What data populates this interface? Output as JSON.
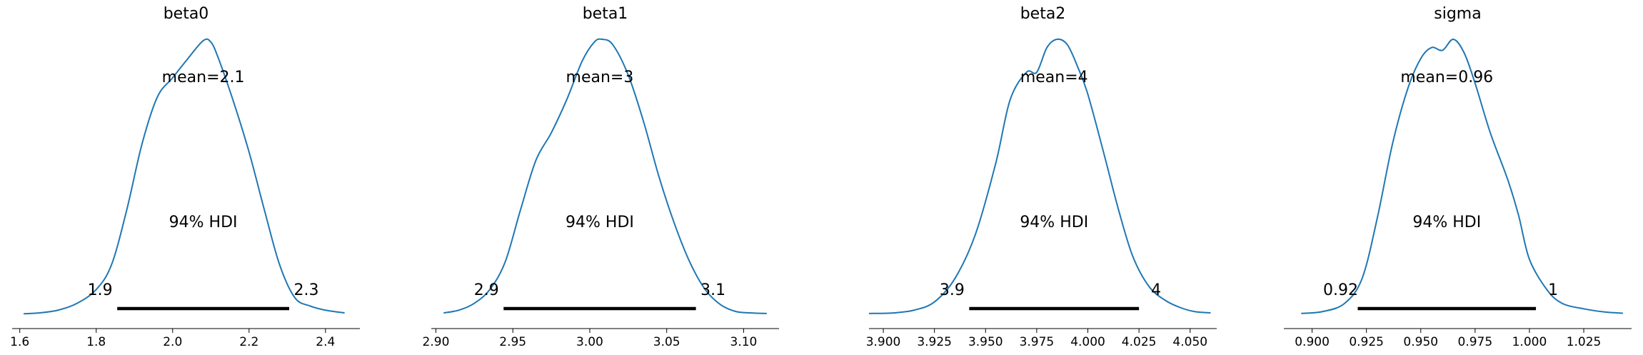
{
  "figure": {
    "background": "#ffffff",
    "kde_color": "#1f77b4",
    "hdi_color": "#000000",
    "axis_color": "#000000"
  },
  "chart_data": [
    {
      "type": "line",
      "title": "beta0",
      "xlim": [
        1.58,
        2.49
      ],
      "grid": false,
      "ticks": [
        1.6,
        1.8,
        2.0,
        2.2,
        2.4
      ],
      "tick_labels": [
        "1.6",
        "1.8",
        "2.0",
        "2.2",
        "2.4"
      ],
      "mean_label": "mean=2.1",
      "hdi_label": "94% HDI",
      "hdi": [
        1.855,
        2.305
      ],
      "hdi_low_label": "1.9",
      "hdi_high_label": "2.3",
      "density": {
        "x": [
          1.61,
          1.65,
          1.7,
          1.75,
          1.8,
          1.84,
          1.88,
          1.92,
          1.96,
          2.0,
          2.04,
          2.08,
          2.1,
          2.12,
          2.16,
          2.2,
          2.24,
          2.28,
          2.32,
          2.36,
          2.4,
          2.45
        ],
        "y": [
          0.002,
          0.005,
          0.015,
          0.04,
          0.09,
          0.18,
          0.38,
          0.62,
          0.79,
          0.86,
          0.93,
          0.995,
          0.99,
          0.93,
          0.77,
          0.59,
          0.38,
          0.18,
          0.06,
          0.03,
          0.015,
          0.005
        ]
      }
    },
    {
      "type": "line",
      "title": "beta1",
      "xlim": [
        2.897,
        3.123
      ],
      "grid": false,
      "ticks": [
        2.9,
        2.95,
        3.0,
        3.05,
        3.1
      ],
      "tick_labels": [
        "2.90",
        "2.95",
        "3.00",
        "3.05",
        "3.10"
      ],
      "mean_label": "mean=3",
      "hdi_label": "94% HDI",
      "hdi": [
        2.944,
        3.069
      ],
      "hdi_low_label": "2.9",
      "hdi_high_label": "3.1",
      "density": {
        "x": [
          2.905,
          2.915,
          2.925,
          2.935,
          2.945,
          2.955,
          2.965,
          2.975,
          2.985,
          2.995,
          3.003,
          3.008,
          3.015,
          3.025,
          3.035,
          3.045,
          3.055,
          3.065,
          3.075,
          3.085,
          3.095,
          3.105,
          3.115
        ],
        "y": [
          0.005,
          0.015,
          0.04,
          0.09,
          0.19,
          0.38,
          0.56,
          0.66,
          0.78,
          0.92,
          0.99,
          1.0,
          0.98,
          0.87,
          0.7,
          0.5,
          0.33,
          0.19,
          0.09,
          0.035,
          0.01,
          0.005,
          0.003
        ]
      }
    },
    {
      "type": "line",
      "title": "beta2",
      "xlim": [
        3.893,
        4.063
      ],
      "grid": false,
      "ticks": [
        3.9,
        3.925,
        3.95,
        3.975,
        4.0,
        4.025,
        4.05
      ],
      "tick_labels": [
        "3.900",
        "3.925",
        "3.950",
        "3.975",
        "4.000",
        "4.025",
        "4.050"
      ],
      "mean_label": "mean=4",
      "hdi_label": "94% HDI",
      "hdi": [
        3.942,
        4.025
      ],
      "hdi_low_label": "3.9",
      "hdi_high_label": "4",
      "density": {
        "x": [
          3.893,
          3.905,
          3.915,
          3.925,
          3.935,
          3.945,
          3.955,
          3.962,
          3.97,
          3.975,
          3.98,
          3.985,
          3.99,
          3.995,
          4.0,
          4.008,
          4.015,
          4.022,
          4.03,
          4.038,
          4.045,
          4.052,
          4.06
        ],
        "y": [
          0.003,
          0.005,
          0.015,
          0.045,
          0.13,
          0.29,
          0.55,
          0.78,
          0.88,
          0.88,
          0.97,
          1.0,
          0.98,
          0.9,
          0.8,
          0.58,
          0.38,
          0.21,
          0.1,
          0.05,
          0.025,
          0.01,
          0.005
        ]
      }
    },
    {
      "type": "line",
      "title": "sigma",
      "xlim": [
        0.887,
        1.047
      ],
      "grid": false,
      "ticks": [
        0.9,
        0.925,
        0.95,
        0.975,
        1.0,
        1.025
      ],
      "tick_labels": [
        "0.900",
        "0.925",
        "0.950",
        "0.975",
        "1.000",
        "1.025"
      ],
      "mean_label": "mean=0.96",
      "hdi_label": "94% HDI",
      "hdi": [
        0.921,
        1.003
      ],
      "hdi_low_label": "0.92",
      "hdi_high_label": "1",
      "density": {
        "x": [
          0.895,
          0.905,
          0.915,
          0.923,
          0.93,
          0.937,
          0.944,
          0.95,
          0.955,
          0.96,
          0.965,
          0.97,
          0.975,
          0.982,
          0.99,
          0.995,
          1.0,
          1.008,
          1.015,
          1.025,
          1.035,
          1.043
        ],
        "y": [
          0.003,
          0.01,
          0.04,
          0.13,
          0.35,
          0.62,
          0.82,
          0.93,
          0.97,
          0.96,
          1.0,
          0.95,
          0.84,
          0.66,
          0.49,
          0.36,
          0.2,
          0.09,
          0.04,
          0.02,
          0.008,
          0.004
        ]
      }
    }
  ]
}
